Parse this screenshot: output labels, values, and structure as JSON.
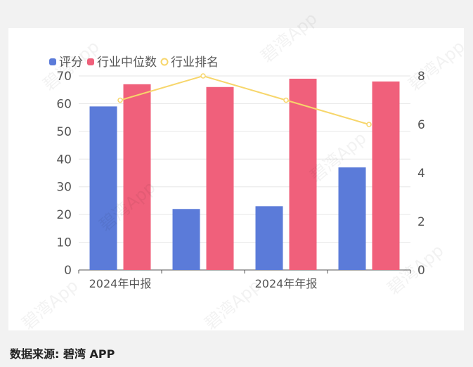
{
  "chart_data": {
    "type": "bar",
    "categories": [
      "2024年中报",
      "",
      "2024年年报",
      ""
    ],
    "series": [
      {
        "name": "评分",
        "kind": "bar",
        "axis": "left",
        "color": "#5b7bd9",
        "values": [
          59,
          22,
          23,
          37
        ]
      },
      {
        "name": "行业中位数",
        "kind": "bar",
        "axis": "left",
        "color": "#f0607b",
        "values": [
          67,
          66,
          69,
          68
        ]
      },
      {
        "name": "行业排名",
        "kind": "line",
        "axis": "right",
        "color": "#f7d66b",
        "values": [
          7,
          8,
          7,
          6
        ]
      }
    ],
    "y_left": {
      "min": 0,
      "max": 70,
      "ticks": [
        0,
        10,
        20,
        30,
        40,
        50,
        60,
        70
      ]
    },
    "y_right": {
      "min": 0,
      "max": 8,
      "ticks": [
        0,
        2,
        4,
        6,
        8
      ]
    },
    "legend_position": "top-left",
    "grid": true
  },
  "footer": {
    "source": "数据来源: 碧湾 APP"
  },
  "watermark": "碧湾App"
}
